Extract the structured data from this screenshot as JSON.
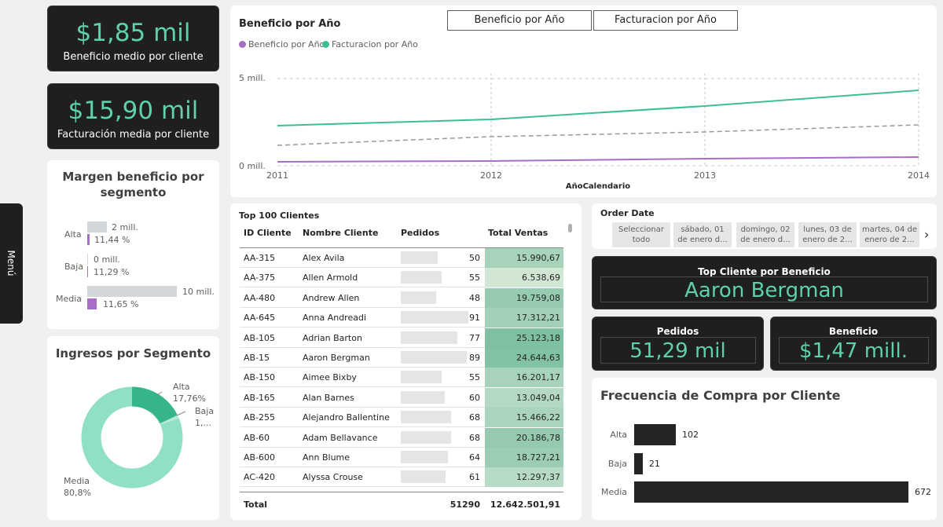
{
  "kpis": {
    "beneficio_medio": {
      "value": "$1,85 mil",
      "label": "Beneficio medio por cliente"
    },
    "facturacion_media": {
      "value": "$15,90 mil",
      "label": "Facturación media por cliente"
    }
  },
  "menu": {
    "label": "Menú"
  },
  "line_chart": {
    "title": "Beneficio por Año",
    "tabs": [
      "Beneficio por Año",
      "Facturacion por Año"
    ],
    "legend": [
      {
        "name": "Beneficio por Año",
        "color": "#a66ec4"
      },
      {
        "name": "Facturacion por Año",
        "color": "#3dbf95"
      }
    ],
    "y_ticks": [
      "5 mill.",
      "0 mill."
    ],
    "x_ticks": [
      "2011",
      "2012",
      "2013",
      "2014"
    ],
    "xlabel": "AñoCalendario"
  },
  "margin_chart": {
    "title_line1": "Margen beneficio por",
    "title_line2": "segmento",
    "rows": [
      {
        "segment": "Alta",
        "value_label": "2 mill.",
        "pct_label": "11,44 %",
        "value": 2,
        "pct": 11.44
      },
      {
        "segment": "Baja",
        "value_label": "0 mill.",
        "pct_label": "11,29 %",
        "value": 0,
        "pct": 11.29
      },
      {
        "segment": "Media",
        "value_label": "10 mill.",
        "pct_label": "11,65 %",
        "value": 10,
        "pct": 11.65
      }
    ]
  },
  "donut": {
    "title": "Ingresos por Segmento",
    "slices": [
      {
        "name": "Alta",
        "label": "17,76%",
        "value": 17.76,
        "color": "#37b58a"
      },
      {
        "name": "Baja",
        "label": "1,...",
        "value": 1.44,
        "color": "#b8e8d6"
      },
      {
        "name": "Media",
        "label": "80,8%",
        "value": 80.8,
        "color": "#8fe0c4"
      }
    ]
  },
  "table": {
    "title": "Top 100 Clientes",
    "headers": [
      "ID Cliente",
      "Nombre Cliente",
      "Pedidos",
      "Total Ventas"
    ],
    "rows": [
      {
        "id": "AA-315",
        "name": "Alex Avila",
        "orders": "50",
        "total": "15.990,67"
      },
      {
        "id": "AA-375",
        "name": "Allen Armold",
        "orders": "55",
        "total": "6.538,69"
      },
      {
        "id": "AA-480",
        "name": "Andrew Allen",
        "orders": "48",
        "total": "19.759,08"
      },
      {
        "id": "AA-645",
        "name": "Anna Andreadi",
        "orders": "91",
        "total": "17.312,21"
      },
      {
        "id": "AB-105",
        "name": "Adrian Barton",
        "orders": "77",
        "total": "25.123,18"
      },
      {
        "id": "AB-15",
        "name": "Aaron Bergman",
        "orders": "89",
        "total": "24.644,63"
      },
      {
        "id": "AB-150",
        "name": "Aimee Bixby",
        "orders": "55",
        "total": "16.201,17"
      },
      {
        "id": "AB-165",
        "name": "Alan Barnes",
        "orders": "60",
        "total": "13.049,04"
      },
      {
        "id": "AB-255",
        "name": "Alejandro Ballentine",
        "orders": "68",
        "total": "15.466,22"
      },
      {
        "id": "AB-60",
        "name": "Adam Bellavance",
        "orders": "68",
        "total": "20.186,78"
      },
      {
        "id": "AB-600",
        "name": "Ann Blume",
        "orders": "64",
        "total": "18.727,21"
      },
      {
        "id": "AC-420",
        "name": "Alyssa Crouse",
        "orders": "61",
        "total": "12.297,37"
      }
    ],
    "footer": {
      "label": "Total",
      "orders": "51290",
      "total": "12.642.501,91"
    }
  },
  "slicer": {
    "title": "Order Date",
    "items": [
      {
        "l1": "Seleccionar",
        "l2": "todo"
      },
      {
        "l1": "sábado, 01",
        "l2": "de enero d..."
      },
      {
        "l1": "domingo, 02",
        "l2": "de enero d..."
      },
      {
        "l1": "lunes, 03 de",
        "l2": "enero de 2..."
      },
      {
        "l1": "martes, 04 de",
        "l2": "enero de 2..."
      }
    ]
  },
  "top_cliente": {
    "title": "Top Cliente por Beneficio",
    "value": "Aaron Bergman"
  },
  "pedidos": {
    "title": "Pedidos",
    "value": "51,29 mil"
  },
  "beneficio": {
    "title": "Beneficio",
    "value": "$1,47 mill."
  },
  "freq_chart": {
    "title": "Frecuencia de Compra por Cliente",
    "rows": [
      {
        "segment": "Alta",
        "value": 102,
        "label": "102"
      },
      {
        "segment": "Baja",
        "value": 21,
        "label": "21"
      },
      {
        "segment": "Media",
        "value": 672,
        "label": "672"
      }
    ]
  }
}
